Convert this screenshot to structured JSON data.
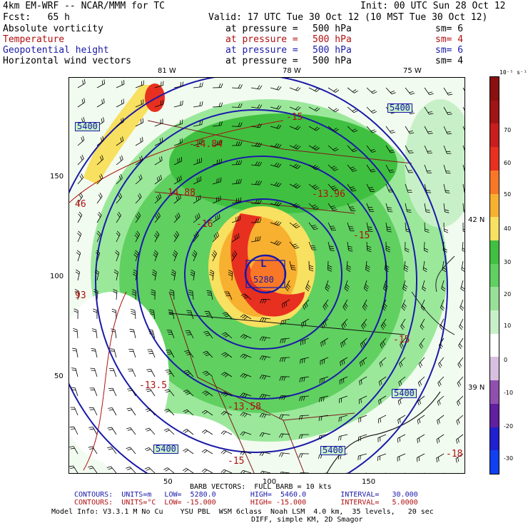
{
  "header": {
    "model_line": "4km EM-WRF -- NCAR/MMM for TC",
    "init": "Init: 00 UTC Sun 28 Oct 12",
    "fcst": "Fcst:   65 h",
    "valid": "Valid: 17 UTC Tue 30 Oct 12 (10 MST Tue 30 Oct 12)"
  },
  "fields": [
    {
      "name": "Absolute vorticity",
      "at": "at pressure =",
      "value": "500 hPa",
      "sm": "sm= 6",
      "color": "#000000"
    },
    {
      "name": "Temperature",
      "at": "at pressure =",
      "value": "500 hPa",
      "sm": "sm= 4",
      "color": "#b01010"
    },
    {
      "name": "Geopotential height",
      "at": "at pressure =",
      "value": "500 hPa",
      "sm": "sm= 6",
      "color": "#1a1aa8"
    },
    {
      "name": "Horizontal wind vectors",
      "at": "at pressure =",
      "value": "500 hPa",
      "sm": "sm= 4",
      "color": "#000000"
    }
  ],
  "axes": {
    "top_lon": [
      "81 W",
      "78 W",
      "75 W"
    ],
    "right_lat": [
      "42 N",
      "39 N"
    ],
    "left_y": [
      "150",
      "100",
      "50"
    ],
    "bottom_x": [
      "50",
      "100",
      "150"
    ]
  },
  "colorbar": {
    "unit": "10⁻⁵ s⁻¹",
    "labels": [
      "70",
      "60",
      "50",
      "40",
      "30",
      "20",
      "10",
      "0",
      "-10",
      "-20",
      "-30"
    ],
    "colors": [
      "#8b1010",
      "#a01515",
      "#c81e1e",
      "#e83020",
      "#f87828",
      "#f8b030",
      "#f8e060",
      "#40c040",
      "#60d060",
      "#98e098",
      "#c8f0c8",
      "#ffffff",
      "#d8c0e0",
      "#9050b0",
      "#6020a0",
      "#2020d0",
      "#1040f0"
    ]
  },
  "map_labels": {
    "heights": [
      "5400",
      "5400",
      "5400",
      "5400",
      "5400",
      "5280"
    ],
    "temps": [
      "-15",
      "-14.84",
      "-14.88",
      "-13.96",
      "-15",
      "-13.58",
      "-13.5",
      "-15",
      "-18",
      "-16",
      "-15",
      "46",
      "93"
    ],
    "center": "L"
  },
  "footer": {
    "barb": "BARB VECTORS:  FULL BARB = 10 kts",
    "contours1": "CONTOURS:  UNITS=m   LOW=  5280.0        HIGH=  5460.0        INTERVAL=   30.000",
    "contours2": "CONTOURS:  UNITS=°C  LOW= -15.000        HIGH= -15.000        INTERVAL=   5.0000",
    "model_info": "Model Info: V3.3.1 M No Cu    YSU PBL  WSM 6class  Noah LSM  4.0 km,  35 levels,   20 sec",
    "model_info2": "DIFF, simple KM, 2D Smagor"
  }
}
